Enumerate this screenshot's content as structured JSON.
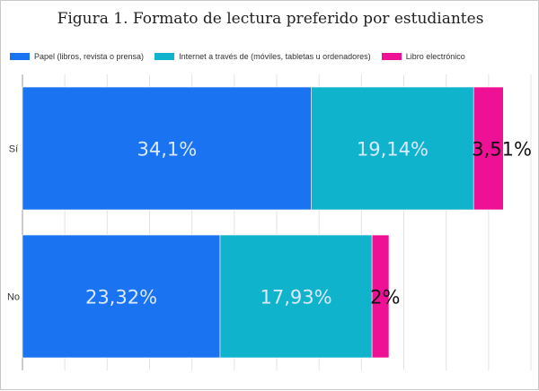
{
  "chart_data": {
    "type": "bar",
    "orientation": "horizontal",
    "stacked": true,
    "title": "Figura 1. Formato de lectura preferido por estudiantes",
    "xlabel": "",
    "ylabel": "",
    "xlim": [
      0,
      60
    ],
    "grid": true,
    "legend_position": "top-left",
    "categories": [
      "Sí",
      "No"
    ],
    "series": [
      {
        "name": "Papel (libros, revista o prensa)",
        "color": "#1a73f0",
        "values": [
          34.1,
          23.32
        ],
        "labels": [
          "34,1%",
          "23,32%"
        ]
      },
      {
        "name": "Internet a través de (móviles, tabletas u ordenadores)",
        "color": "#0fb3cc",
        "values": [
          19.14,
          17.93
        ],
        "labels": [
          "19,14%",
          "17,93%"
        ]
      },
      {
        "name": "Libro electrónico",
        "color": "#ee1196",
        "values": [
          3.51,
          2
        ],
        "labels": [
          "3,51%",
          "2%"
        ]
      }
    ]
  }
}
